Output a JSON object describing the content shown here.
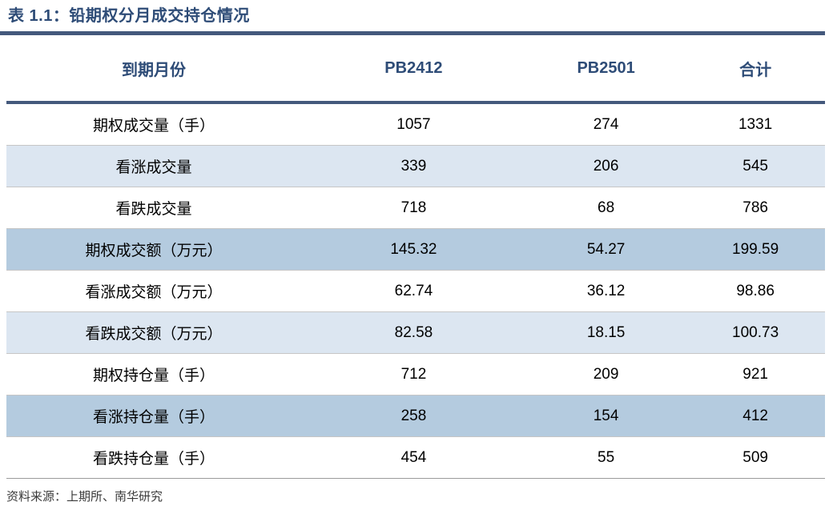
{
  "title": "表 1.1：铅期权分月成交持仓情况",
  "colors": {
    "accent_navy_text": "#2e4c77",
    "rule_navy": "#44597c",
    "stripe_light": "#dce6f1",
    "stripe_medium": "#b4cbdf",
    "row_separator_gray": "#c6c6c6"
  },
  "table": {
    "columns": [
      "到期月份",
      "PB2412",
      "PB2501",
      "合计"
    ],
    "rows": [
      {
        "label": "期权成交量（手）",
        "values": [
          "1057",
          "274",
          "1331"
        ],
        "stripe": "white"
      },
      {
        "label": "看涨成交量",
        "values": [
          "339",
          "206",
          "545"
        ],
        "stripe": "light"
      },
      {
        "label": "看跌成交量",
        "values": [
          "718",
          "68",
          "786"
        ],
        "stripe": "white"
      },
      {
        "label": "期权成交额（万元）",
        "values": [
          "145.32",
          "54.27",
          "199.59"
        ],
        "stripe": "medium"
      },
      {
        "label": "看涨成交额（万元）",
        "values": [
          "62.74",
          "36.12",
          "98.86"
        ],
        "stripe": "white"
      },
      {
        "label": "看跌成交额（万元）",
        "values": [
          "82.58",
          "18.15",
          "100.73"
        ],
        "stripe": "light"
      },
      {
        "label": "期权持仓量（手）",
        "values": [
          "712",
          "209",
          "921"
        ],
        "stripe": "white"
      },
      {
        "label": "看涨持仓量（手）",
        "values": [
          "258",
          "154",
          "412"
        ],
        "stripe": "medium"
      },
      {
        "label": "看跌持仓量（手）",
        "values": [
          "454",
          "55",
          "509"
        ],
        "stripe": "white"
      }
    ]
  },
  "source": "资料来源：上期所、南华研究"
}
